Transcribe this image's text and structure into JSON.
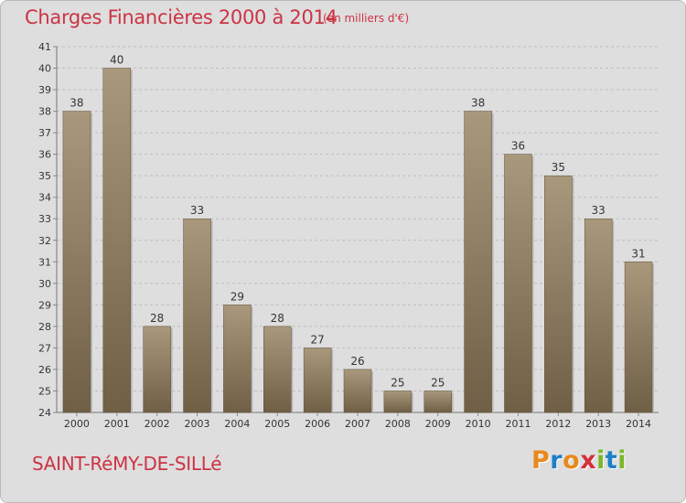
{
  "header": {
    "title": "Charges Financières 2000 à 2014",
    "unit": "(en milliers d'€)"
  },
  "footer": {
    "commune": "SAINT-RéMY-DE-SILLé",
    "logo_text": "Proxiti",
    "logo_colors": [
      "#e8891c",
      "#1e7fc4",
      "#e8891c",
      "#d4303a",
      "#7ab829",
      "#1e7fc4",
      "#7ab829"
    ]
  },
  "colors": {
    "title": "#cc3344",
    "background": "#dedede",
    "bar_light": "#a9987c",
    "bar_dark": "#6f5f45",
    "grid": "#bdbdbd"
  },
  "chart_data": {
    "type": "bar",
    "title": "Charges Financières 2000 à 2014",
    "subtitle": "(en milliers d'€)",
    "xlabel": "",
    "ylabel": "",
    "categories": [
      "2000",
      "2001",
      "2002",
      "2003",
      "2004",
      "2005",
      "2006",
      "2007",
      "2008",
      "2009",
      "2010",
      "2011",
      "2012",
      "2013",
      "2014"
    ],
    "values": [
      38,
      40,
      28,
      33,
      29,
      28,
      27,
      26,
      25,
      25,
      38,
      36,
      35,
      33,
      31
    ],
    "ylim": [
      24,
      41
    ],
    "yticks": [
      24,
      25,
      26,
      27,
      28,
      29,
      30,
      31,
      32,
      33,
      34,
      35,
      36,
      37,
      38,
      39,
      40,
      41
    ],
    "grid": true,
    "data_labels": true,
    "legend": "none"
  }
}
